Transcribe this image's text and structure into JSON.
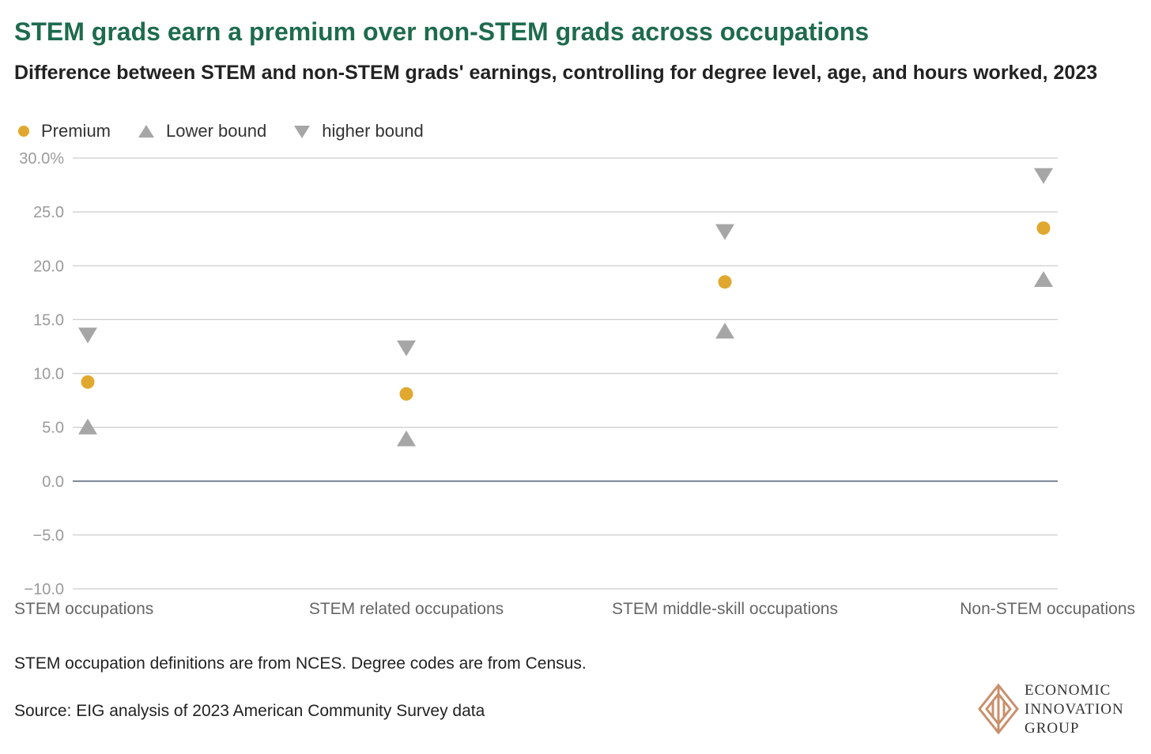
{
  "title": "STEM grads earn a premium over non-STEM grads across occupations",
  "subtitle": "Difference between STEM and non-STEM grads' earnings, controlling for degree level, age, and hours worked, 2023",
  "legend": [
    {
      "label": "Premium",
      "shape": "circle",
      "color": "#e0a82e"
    },
    {
      "label": "Lower bound",
      "shape": "triangle-up",
      "color": "#a6a6a6"
    },
    {
      "label": "higher bound",
      "shape": "triangle-down",
      "color": "#a6a6a6"
    }
  ],
  "chart_data": {
    "type": "scatter",
    "categories": [
      "STEM occupations",
      "STEM related occupations",
      "STEM middle-skill occupations",
      "Non-STEM occupations"
    ],
    "series": [
      {
        "name": "Premium",
        "values": [
          9.2,
          8.1,
          18.5,
          23.5
        ]
      },
      {
        "name": "Lower bound",
        "values": [
          5.0,
          3.9,
          13.9,
          18.7
        ]
      },
      {
        "name": "higher bound",
        "values": [
          13.6,
          12.4,
          23.2,
          28.4
        ]
      }
    ],
    "ylim": [
      -10,
      30
    ],
    "yticks": [
      {
        "value": 30,
        "label": "30.0%"
      },
      {
        "value": 25,
        "label": "25.0"
      },
      {
        "value": 20,
        "label": "20.0"
      },
      {
        "value": 15,
        "label": "15.0"
      },
      {
        "value": 10,
        "label": "10.0"
      },
      {
        "value": 5,
        "label": "5.0"
      },
      {
        "value": 0,
        "label": "0.0"
      },
      {
        "value": -5,
        "label": "−5.0"
      },
      {
        "value": -10,
        "label": "−10.0"
      }
    ],
    "grid": true,
    "legend_position": "top-left"
  },
  "footer": {
    "note": "STEM occupation definitions are from NCES. Degree codes are from Census.",
    "source": "Source: EIG analysis of 2023 American Community Survey data"
  },
  "logo": {
    "lines": [
      "ECONOMIC",
      "INNOVATION",
      "GROUP"
    ],
    "color": "#c9906c"
  }
}
